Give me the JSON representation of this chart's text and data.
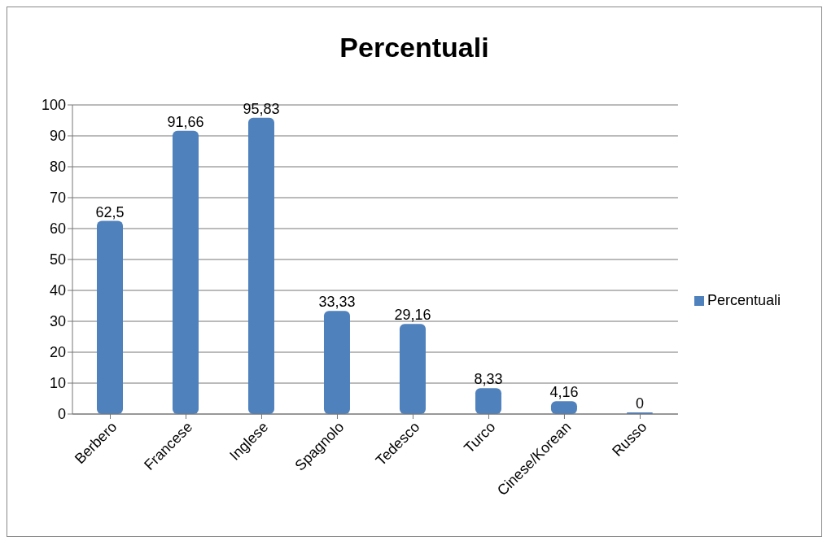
{
  "chart_data": {
    "type": "bar",
    "title": "Percentuali",
    "categories": [
      "Berbero",
      "Francese",
      "Inglese",
      "Spagnolo",
      "Tedesco",
      "Turco",
      "Cinese/Korean",
      "Russo"
    ],
    "series": [
      {
        "name": "Percentuali",
        "color": "#4f81bd",
        "values": [
          62.5,
          91.66,
          95.83,
          33.33,
          29.16,
          8.33,
          4.16,
          0
        ],
        "value_labels": [
          "62,5",
          "91,66",
          "95,83",
          "33,33",
          "29,16",
          "8,33",
          "4,16",
          "0"
        ]
      }
    ],
    "ylim": [
      0,
      100
    ],
    "yticks": [
      0,
      10,
      20,
      30,
      40,
      50,
      60,
      70,
      80,
      90,
      100
    ],
    "grid": "y",
    "legend": "right"
  }
}
